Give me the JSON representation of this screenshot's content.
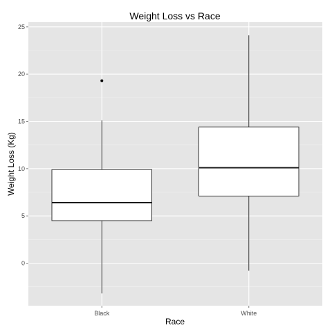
{
  "chart_data": {
    "type": "boxplot",
    "title": "Weight Loss vs Race",
    "xlabel": "Race",
    "ylabel": "Weight Loss (Kg)",
    "categories": [
      "Black",
      "White"
    ],
    "ylim": [
      -4.5,
      25.5
    ],
    "yticks": [
      0,
      5,
      10,
      15,
      20,
      25
    ],
    "grid": true,
    "boxes": [
      {
        "category": "Black",
        "whisker_low": -3.2,
        "q1": 4.5,
        "median": 6.4,
        "q3": 9.9,
        "whisker_high": 15.1,
        "outliers": [
          19.3
        ]
      },
      {
        "category": "White",
        "whisker_low": -0.8,
        "q1": 7.1,
        "median": 10.1,
        "q3": 14.4,
        "whisker_high": 24.1,
        "outliers": []
      }
    ]
  }
}
